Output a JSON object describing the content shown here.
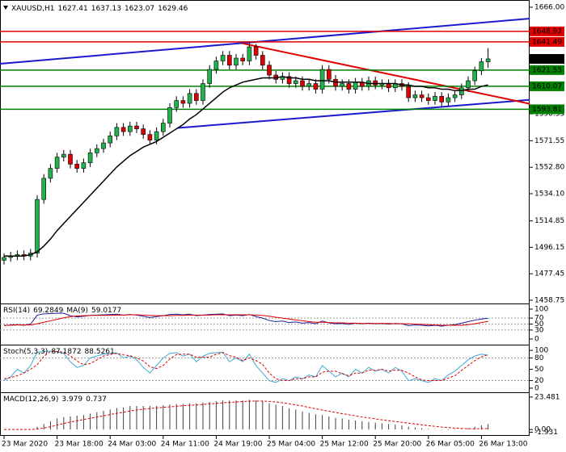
{
  "chart_data": [
    {
      "type": "candlestick",
      "title": "XAUUSD,H1",
      "categories": [
        "23 Mar 2020",
        null,
        null,
        null,
        null,
        null,
        null,
        null,
        "23 Mar 18:00",
        null,
        null,
        null,
        null,
        null,
        null,
        null,
        "24 Mar 03:00",
        null,
        null,
        null,
        null,
        null,
        null,
        null,
        "24 Mar 11:00",
        null,
        null,
        null,
        null,
        null,
        null,
        null,
        "24 Mar 19:00",
        null,
        null,
        null,
        null,
        null,
        null,
        null,
        "25 Mar 04:00",
        null,
        null,
        null,
        null,
        null,
        null,
        null,
        "25 Mar 12:00",
        null,
        null,
        null,
        null,
        null,
        null,
        null,
        "25 Mar 20:00",
        null,
        null,
        null,
        null,
        null,
        null,
        null,
        "26 Mar 05:00",
        null,
        null,
        null,
        null,
        null,
        null,
        null,
        "26 Mar 13:00",
        null
      ],
      "open": [
        1487,
        1489,
        1490,
        1491,
        1490,
        1492,
        1530,
        1545,
        1552,
        1560,
        1562,
        1555,
        1552,
        1556,
        1563,
        1566,
        1570,
        1575,
        1581,
        1578,
        1582,
        1580,
        1576,
        1572,
        1578,
        1584,
        1595,
        1600,
        1598,
        1605,
        1600,
        1612,
        1622,
        1628,
        1632,
        1625,
        1630,
        1628,
        1638,
        1632,
        1625,
        1618,
        1615,
        1617,
        1612,
        1614,
        1610,
        1612,
        1608,
        1622,
        1615,
        1610,
        1612,
        1608,
        1613,
        1610,
        1614,
        1611,
        1612,
        1609,
        1612,
        1610,
        1602,
        1604,
        1602,
        1600,
        1603,
        1599,
        1602,
        1604,
        1609,
        1614,
        1621,
        1627.41
      ],
      "high": [
        1492,
        1493,
        1494,
        1494,
        1495,
        1533,
        1548,
        1555,
        1563,
        1565,
        1565,
        1558,
        1559,
        1566,
        1569,
        1573,
        1578,
        1584,
        1584,
        1585,
        1585,
        1583,
        1579,
        1581,
        1587,
        1598,
        1603,
        1603,
        1608,
        1608,
        1615,
        1625,
        1631,
        1635,
        1635,
        1633,
        1633,
        1641,
        1640,
        1635,
        1628,
        1621,
        1620,
        1620,
        1617,
        1617,
        1615,
        1615,
        1625,
        1625,
        1618,
        1615,
        1615,
        1616,
        1616,
        1617,
        1617,
        1615,
        1615,
        1615,
        1615,
        1613,
        1607,
        1607,
        1605,
        1606,
        1606,
        1605,
        1607,
        1612,
        1617,
        1624,
        1630,
        1637.13
      ],
      "low": [
        1484,
        1486,
        1487,
        1487,
        1487,
        1489,
        1527,
        1542,
        1549,
        1557,
        1552,
        1549,
        1549,
        1553,
        1560,
        1563,
        1567,
        1572,
        1575,
        1575,
        1577,
        1573,
        1569,
        1569,
        1575,
        1581,
        1592,
        1595,
        1595,
        1597,
        1597,
        1609,
        1619,
        1625,
        1622,
        1622,
        1625,
        1625,
        1629,
        1622,
        1615,
        1612,
        1612,
        1609,
        1609,
        1607,
        1607,
        1605,
        1605,
        1612,
        1607,
        1607,
        1605,
        1605,
        1607,
        1607,
        1608,
        1608,
        1606,
        1606,
        1607,
        1599,
        1599,
        1599,
        1597,
        1597,
        1596,
        1596,
        1599,
        1601,
        1606,
        1611,
        1618,
        1623.07
      ],
      "close": [
        1489,
        1490,
        1491,
        1490,
        1492,
        1530,
        1545,
        1552,
        1560,
        1562,
        1555,
        1552,
        1556,
        1563,
        1566,
        1570,
        1575,
        1581,
        1578,
        1582,
        1580,
        1576,
        1572,
        1578,
        1584,
        1595,
        1600,
        1598,
        1605,
        1600,
        1612,
        1622,
        1628,
        1632,
        1625,
        1630,
        1628,
        1638,
        1632,
        1625,
        1618,
        1615,
        1617,
        1612,
        1614,
        1610,
        1612,
        1608,
        1622,
        1615,
        1610,
        1612,
        1608,
        1613,
        1610,
        1614,
        1611,
        1612,
        1609,
        1612,
        1610,
        1602,
        1604,
        1602,
        1600,
        1603,
        1599,
        1602,
        1604,
        1609,
        1614,
        1621,
        1627.41,
        1629.46
      ],
      "up_color": "#22b14c",
      "down_color": "#e00000",
      "ma": {
        "color": "#000000",
        "values": [
          1490,
          1490,
          1490,
          1490,
          1491,
          1493,
          1497,
          1502,
          1508,
          1513,
          1518,
          1523,
          1528,
          1533,
          1538,
          1543,
          1548,
          1553,
          1557,
          1561,
          1564,
          1567,
          1569,
          1571,
          1574,
          1577,
          1580,
          1583,
          1587,
          1590,
          1594,
          1598,
          1602,
          1606,
          1609,
          1611,
          1613,
          1614,
          1615,
          1616,
          1616,
          1616,
          1617,
          1616,
          1616,
          1615,
          1615,
          1614,
          1614,
          1614,
          1613,
          1613,
          1613,
          1613,
          1613,
          1612,
          1612,
          1612,
          1612,
          1612,
          1611,
          1611,
          1610,
          1610,
          1609,
          1609,
          1608,
          1608,
          1607,
          1607,
          1608,
          1608,
          1610,
          1611
        ]
      },
      "levels": [
        {
          "value": 1648.92,
          "color": "#e00000"
        },
        {
          "value": 1641.49,
          "color": "#e00000"
        },
        {
          "value": 1621.55,
          "color": "#008000"
        },
        {
          "value": 1610.07,
          "color": "#008000"
        },
        {
          "value": 1593.81,
          "color": "#008000"
        }
      ],
      "trendlines": [
        {
          "color": "#1a1acc",
          "x": [
            -0.6,
            79.3
          ],
          "y": [
            1626,
            1658
          ]
        },
        {
          "color": "#1a1acc",
          "x": [
            26.2,
            79.3
          ],
          "y": [
            1580.6,
            1600.5
          ]
        },
        {
          "color": "#e00000",
          "x": [
            36,
            79.3
          ],
          "y": [
            1640.4,
            1597.7
          ]
        }
      ],
      "current_color": "#000000",
      "ylim": [
        1457,
        1670.55
      ],
      "yticks": [
        {
          "value": 1666,
          "label": "1666.00"
        },
        1590.55,
        1571.55,
        {
          "value": 1552.8,
          "label": "1552.80"
        },
        {
          "value": 1534.1,
          "label": "1534.10"
        },
        1514.85,
        1496.15,
        1477.45,
        1458.75
      ]
    },
    {
      "type": "line",
      "series": [
        {
          "name": "RSI(14)",
          "color": "#1e1e9a",
          "values": [
            45,
            47,
            48,
            46,
            50,
            80,
            84,
            85,
            86,
            86,
            78,
            74,
            76,
            79,
            80,
            81,
            82,
            83,
            80,
            82,
            80,
            76,
            72,
            75,
            78,
            82,
            83,
            81,
            83,
            78,
            80,
            82,
            83,
            84,
            78,
            80,
            78,
            82,
            75,
            70,
            62,
            58,
            60,
            55,
            57,
            53,
            55,
            51,
            60,
            54,
            51,
            52,
            49,
            53,
            51,
            53,
            51,
            52,
            50,
            52,
            51,
            45,
            47,
            46,
            44,
            46,
            43,
            46,
            48,
            53,
            58,
            63,
            67,
            69.2849
          ]
        },
        {
          "name": "MA(9)",
          "color": "#e00000",
          "values": [
            46,
            46,
            47,
            47,
            47,
            51,
            56,
            61,
            66,
            71,
            75,
            77,
            78,
            79,
            79,
            79,
            79,
            80,
            80,
            81,
            81,
            80,
            79,
            78,
            78,
            78,
            79,
            79,
            80,
            80,
            80,
            80,
            81,
            81,
            81,
            81,
            81,
            81,
            80,
            79,
            76,
            73,
            70,
            67,
            64,
            61,
            58,
            56,
            56,
            55,
            54,
            54,
            53,
            53,
            52,
            52,
            52,
            52,
            52,
            51,
            51,
            51,
            50,
            49,
            48,
            47,
            46,
            46,
            46,
            46,
            48,
            51,
            55,
            59.0177
          ]
        }
      ],
      "levels": [
        30,
        50,
        70
      ],
      "ylim": [
        -13.5,
        113.5
      ],
      "yticks": [
        0,
        30,
        50,
        70,
        100
      ]
    },
    {
      "type": "line",
      "title": "Stoch(5,3,3)",
      "series": [
        {
          "color": "#3fa9d6",
          "values": [
            20,
            30,
            50,
            40,
            60,
            95,
            97,
            98,
            96,
            92,
            70,
            55,
            60,
            80,
            85,
            90,
            92,
            93,
            80,
            85,
            75,
            55,
            40,
            60,
            80,
            92,
            94,
            85,
            90,
            70,
            85,
            92,
            94,
            95,
            70,
            80,
            70,
            90,
            60,
            40,
            20,
            15,
            25,
            20,
            30,
            25,
            35,
            30,
            60,
            45,
            30,
            40,
            30,
            50,
            40,
            55,
            45,
            50,
            40,
            55,
            45,
            20,
            25,
            20,
            15,
            25,
            20,
            35,
            45,
            60,
            75,
            85,
            90,
            87.1872
          ]
        },
        {
          "color": "#e00000",
          "dash": true,
          "values": [
            25,
            28,
            33,
            40,
            50,
            62,
            84,
            97,
            97,
            95,
            86,
            72,
            62,
            65,
            75,
            85,
            89,
            92,
            88,
            86,
            80,
            72,
            57,
            52,
            60,
            77,
            89,
            90,
            90,
            82,
            82,
            82,
            90,
            94,
            86,
            82,
            73,
            80,
            73,
            63,
            40,
            25,
            20,
            20,
            25,
            25,
            30,
            30,
            42,
            45,
            45,
            38,
            33,
            40,
            40,
            48,
            47,
            50,
            45,
            48,
            47,
            40,
            30,
            22,
            20,
            20,
            20,
            27,
            33,
            47,
            60,
            73,
            83,
            88.5261
          ]
        }
      ],
      "levels": [
        20,
        80
      ],
      "ylim": [
        -8.7,
        110.9
      ],
      "yticks": [
        0,
        20,
        50,
        80,
        100
      ]
    },
    {
      "type": "macd",
      "title": "MACD(12,26,9)",
      "series": [
        {
          "color": "#404040",
          "values": [
            0,
            0,
            0,
            0,
            0,
            2,
            4,
            6,
            8,
            9,
            9.5,
            10,
            10.5,
            11.5,
            12.5,
            13.5,
            14.5,
            15.5,
            16,
            17,
            17,
            17,
            17,
            17,
            17.5,
            18,
            18.5,
            18.5,
            19,
            19,
            19.5,
            20,
            20.5,
            21,
            21,
            21,
            21,
            21.5,
            21,
            20.5,
            19,
            18,
            17,
            15.5,
            14.5,
            13,
            12,
            11,
            10.5,
            9.5,
            8.5,
            8,
            7,
            6.5,
            6,
            5.5,
            5,
            4.5,
            4,
            3.5,
            3,
            2,
            1.5,
            1,
            0.5,
            0.3,
            -0.2,
            -0.3,
            -0.2,
            0.3,
            1,
            2,
            3,
            3.979
          ]
        },
        {
          "color": "#e00000",
          "dash": true,
          "values": [
            0,
            0,
            0,
            0,
            0,
            0.4,
            1.1,
            2,
            3.2,
            4.4,
            5.4,
            6.3,
            7.2,
            8.1,
            9,
            9.9,
            10.8,
            11.7,
            12.5,
            13.4,
            14.1,
            14.7,
            15.2,
            15.6,
            16,
            16.4,
            16.8,
            17.2,
            17.5,
            17.8,
            18.1,
            18.5,
            18.9,
            19.3,
            19.6,
            19.9,
            20.2,
            20.5,
            20.6,
            20.6,
            20.3,
            19.9,
            19.3,
            18.6,
            17.8,
            17,
            16,
            15,
            14.1,
            13.2,
            12.3,
            11.5,
            10.7,
            9.9,
            9.1,
            8.4,
            7.7,
            7,
            6.4,
            5.8,
            5.2,
            4.6,
            4,
            3.4,
            2.8,
            2.3,
            1.8,
            1.4,
            1,
            0.8,
            0.6,
            0.5,
            0.6,
            0.737
          ]
        }
      ],
      "ylim": [
        -4.0,
        25.77
      ],
      "yticks": [
        23.481,
        {
          "value": 0,
          "label": "0.00"
        },
        -1.931
      ]
    }
  ]
}
